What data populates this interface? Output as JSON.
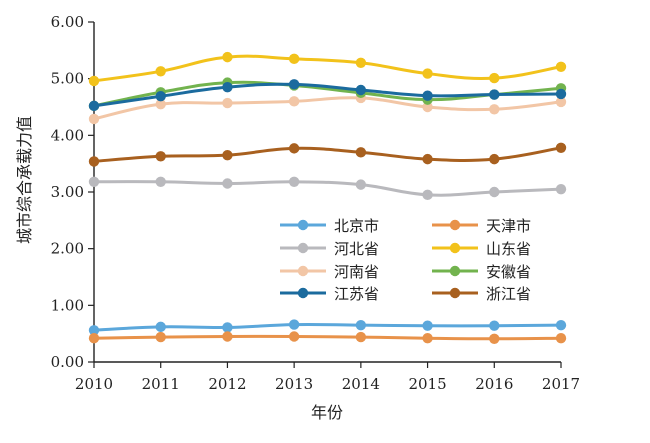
{
  "chart_data": {
    "type": "line",
    "title": "",
    "xlabel": "年份",
    "ylabel": "城市综合承载力值",
    "x": [
      2010,
      2011,
      2012,
      2013,
      2014,
      2015,
      2016,
      2017
    ],
    "xticks": [
      "2010",
      "2011",
      "2012",
      "2013",
      "2014",
      "2015",
      "2016",
      "2017"
    ],
    "ylim": [
      0,
      6
    ],
    "yticks": [
      "0.00",
      "1.00",
      "2.00",
      "3.00",
      "4.00",
      "5.00",
      "6.00"
    ],
    "grid": false,
    "legend_position": "bottom-right",
    "series": [
      {
        "name": "北京市",
        "color": "#5BA7DB",
        "values": [
          0.56,
          0.62,
          0.61,
          0.66,
          0.65,
          0.64,
          0.64,
          0.65
        ]
      },
      {
        "name": "天津市",
        "color": "#E8924A",
        "values": [
          0.42,
          0.44,
          0.45,
          0.45,
          0.44,
          0.42,
          0.41,
          0.42
        ]
      },
      {
        "name": "河北省",
        "color": "#B9B9BD",
        "values": [
          3.18,
          3.18,
          3.15,
          3.18,
          3.13,
          2.95,
          3.0,
          3.05
        ]
      },
      {
        "name": "山东省",
        "color": "#F2C21B",
        "values": [
          4.96,
          5.13,
          5.38,
          5.35,
          5.28,
          5.09,
          5.01,
          5.21
        ]
      },
      {
        "name": "河南省",
        "color": "#F2C6A6",
        "values": [
          4.29,
          4.55,
          4.57,
          4.6,
          4.66,
          4.5,
          4.46,
          4.59
        ]
      },
      {
        "name": "安徽省",
        "color": "#72B34E",
        "values": [
          4.52,
          4.76,
          4.93,
          4.88,
          4.75,
          4.63,
          4.72,
          4.83
        ]
      },
      {
        "name": "江苏省",
        "color": "#1B6B9E",
        "values": [
          4.52,
          4.69,
          4.85,
          4.9,
          4.8,
          4.7,
          4.72,
          4.73
        ]
      },
      {
        "name": "浙江省",
        "color": "#A8601F",
        "values": [
          3.54,
          3.63,
          3.65,
          3.77,
          3.7,
          3.58,
          3.58,
          3.78
        ]
      }
    ]
  }
}
